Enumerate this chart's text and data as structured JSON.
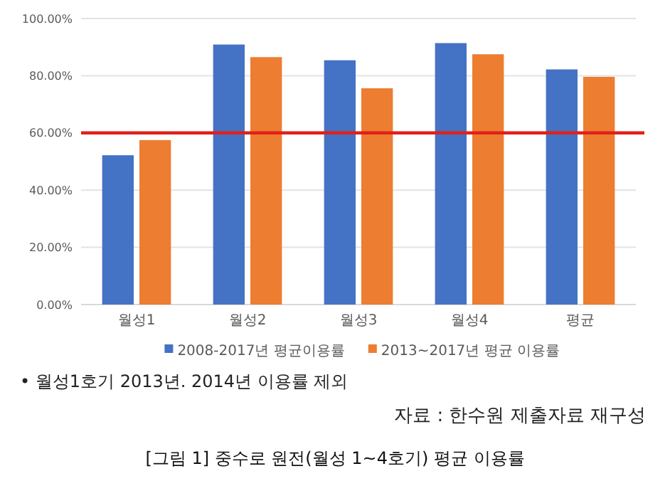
{
  "chart_data": {
    "type": "bar",
    "title": "[그림 1] 중수로 원전(월성 1~4호기) 평균 이용률",
    "categories": [
      "월성1",
      "월성2",
      "월성3",
      "월성4",
      "평균"
    ],
    "series": [
      {
        "name": "2008-2017년 평균이용률",
        "color": "#4472c4",
        "values": [
          52.2,
          90.9,
          85.4,
          91.4,
          82.2
        ]
      },
      {
        "name": "2013~2017년 평균 이용률",
        "color": "#ed7d31",
        "values": [
          57.5,
          86.5,
          75.6,
          87.5,
          79.6
        ]
      }
    ],
    "ylim": [
      0,
      100
    ],
    "yticks": [
      {
        "value": 0,
        "label": "0.00%"
      },
      {
        "value": 20,
        "label": "20.00%"
      },
      {
        "value": 40,
        "label": "40.00%"
      },
      {
        "value": 60,
        "label": "60.00%"
      },
      {
        "value": 80,
        "label": "80.00%"
      },
      {
        "value": 100,
        "label": "100.00%"
      }
    ],
    "grid": "y",
    "legend": "bottom",
    "ref_lines": [
      {
        "axis": "y",
        "value": 60,
        "color": "#e0201b"
      }
    ],
    "annotations": [
      "• 월성1호기 2013년. 2014년 이용률 제외",
      "자료 : 한수원 제출자료 재구성"
    ]
  }
}
